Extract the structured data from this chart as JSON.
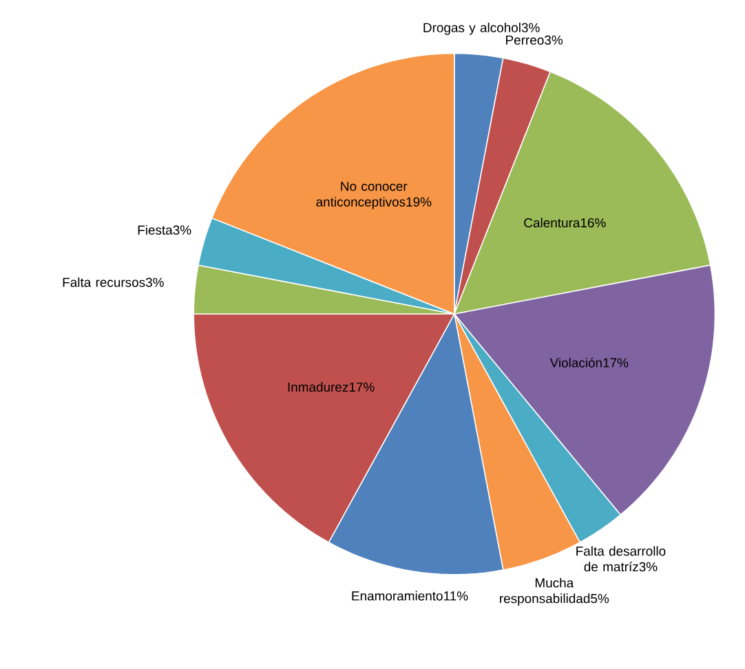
{
  "chart_data": {
    "type": "pie",
    "categories": [
      "Drogas y alcohol",
      "Perreo",
      "Calentura",
      "Violación",
      "Falta desarrollo de matríz",
      "Mucha responsabilidad",
      "Enamoramiento",
      "Inmadurez",
      "Falta recursos",
      "Fiesta",
      "No conocer anticonceptivos"
    ],
    "values": [
      3,
      3,
      16,
      17,
      3,
      5,
      11,
      17,
      3,
      3,
      19
    ],
    "value_labels": [
      "3%",
      "3%",
      "16%",
      "17%",
      "3%",
      "5%",
      "11%",
      "17%",
      "3%",
      "3%",
      "19%"
    ],
    "colors": [
      "#4f81bd",
      "#c0504d",
      "#9bbb59",
      "#8064a2",
      "#4bacc6",
      "#f79646",
      "#4f81bd",
      "#c0504d",
      "#9bbb59",
      "#4bacc6",
      "#f79646"
    ]
  }
}
